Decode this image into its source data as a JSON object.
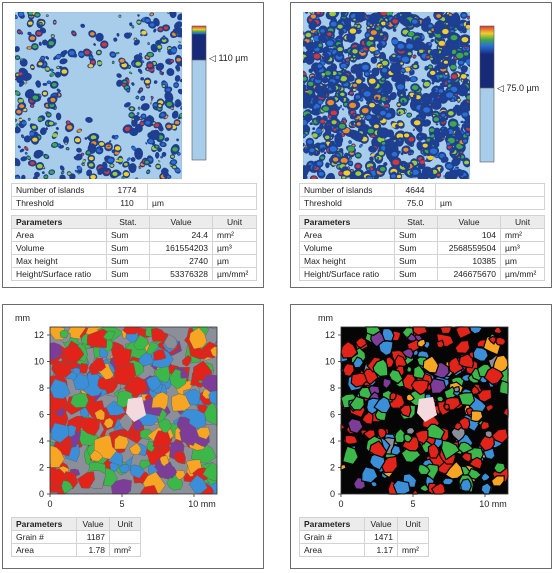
{
  "panels": [
    {
      "colorbar_label": "110 µm",
      "islands": {
        "label": "Number of islands",
        "value": "1774"
      },
      "threshold": {
        "label": "Threshold",
        "value": "110",
        "unit": "µm"
      },
      "headers": [
        "Parameters",
        "Stat.",
        "Value",
        "Unit"
      ],
      "rows": [
        {
          "name": "Area",
          "stat": "Sum",
          "value": "24.4",
          "unit": "mm²"
        },
        {
          "name": "Volume",
          "stat": "Sum",
          "value": "161554203",
          "unit": "µm³"
        },
        {
          "name": "Max height",
          "stat": "Sum",
          "value": "2740",
          "unit": "µm"
        },
        {
          "name": "Height/Surface ratio",
          "stat": "Sum",
          "value": "53376328",
          "unit": "µm/mm²"
        }
      ],
      "threshold_fraction": 0.26
    },
    {
      "colorbar_label": "75.0 µm",
      "islands": {
        "label": "Number of islands",
        "value": "4644"
      },
      "threshold": {
        "label": "Threshold",
        "value": "75.0",
        "unit": "µm"
      },
      "headers": [
        "Parameters",
        "Stat.",
        "Value",
        "Unit"
      ],
      "rows": [
        {
          "name": "Area",
          "stat": "Sum",
          "value": "104",
          "unit": "mm²"
        },
        {
          "name": "Volume",
          "stat": "Sum",
          "value": "2568559504",
          "unit": "µm³"
        },
        {
          "name": "Max height",
          "stat": "Sum",
          "value": "10385",
          "unit": "µm"
        },
        {
          "name": "Height/Surface ratio",
          "stat": "Sum",
          "value": "246675670",
          "unit": "µm/mm²"
        }
      ],
      "threshold_fraction": 0.46
    },
    {
      "axis_unit": "mm",
      "x_ticks": [
        "0",
        "5",
        "10 mm"
      ],
      "y_ticks": [
        "0",
        "2",
        "4",
        "6",
        "8",
        "10",
        "12"
      ],
      "headers": [
        "Parameters",
        "Value",
        "Unit"
      ],
      "rows": [
        {
          "name": "Grain #",
          "value": "1187",
          "unit": ""
        },
        {
          "name": "Area",
          "value": "1.78",
          "unit": "mm²"
        }
      ]
    },
    {
      "axis_unit": "mm",
      "x_ticks": [
        "0",
        "5",
        "10 mm"
      ],
      "y_ticks": [
        "0",
        "2",
        "4",
        "6",
        "8",
        "10",
        "12"
      ],
      "headers": [
        "Parameters",
        "Value",
        "Unit"
      ],
      "rows": [
        {
          "name": "Grain #",
          "value": "1471",
          "unit": ""
        },
        {
          "name": "Area",
          "value": "1.17",
          "unit": "mm²"
        }
      ]
    }
  ],
  "colors": {
    "map_background": "#a8cdea",
    "grain_palette": [
      "#e2231a",
      "#3a8fd8",
      "#3cb84a",
      "#f6a623",
      "#7d3c98",
      "#8a8f99"
    ]
  }
}
